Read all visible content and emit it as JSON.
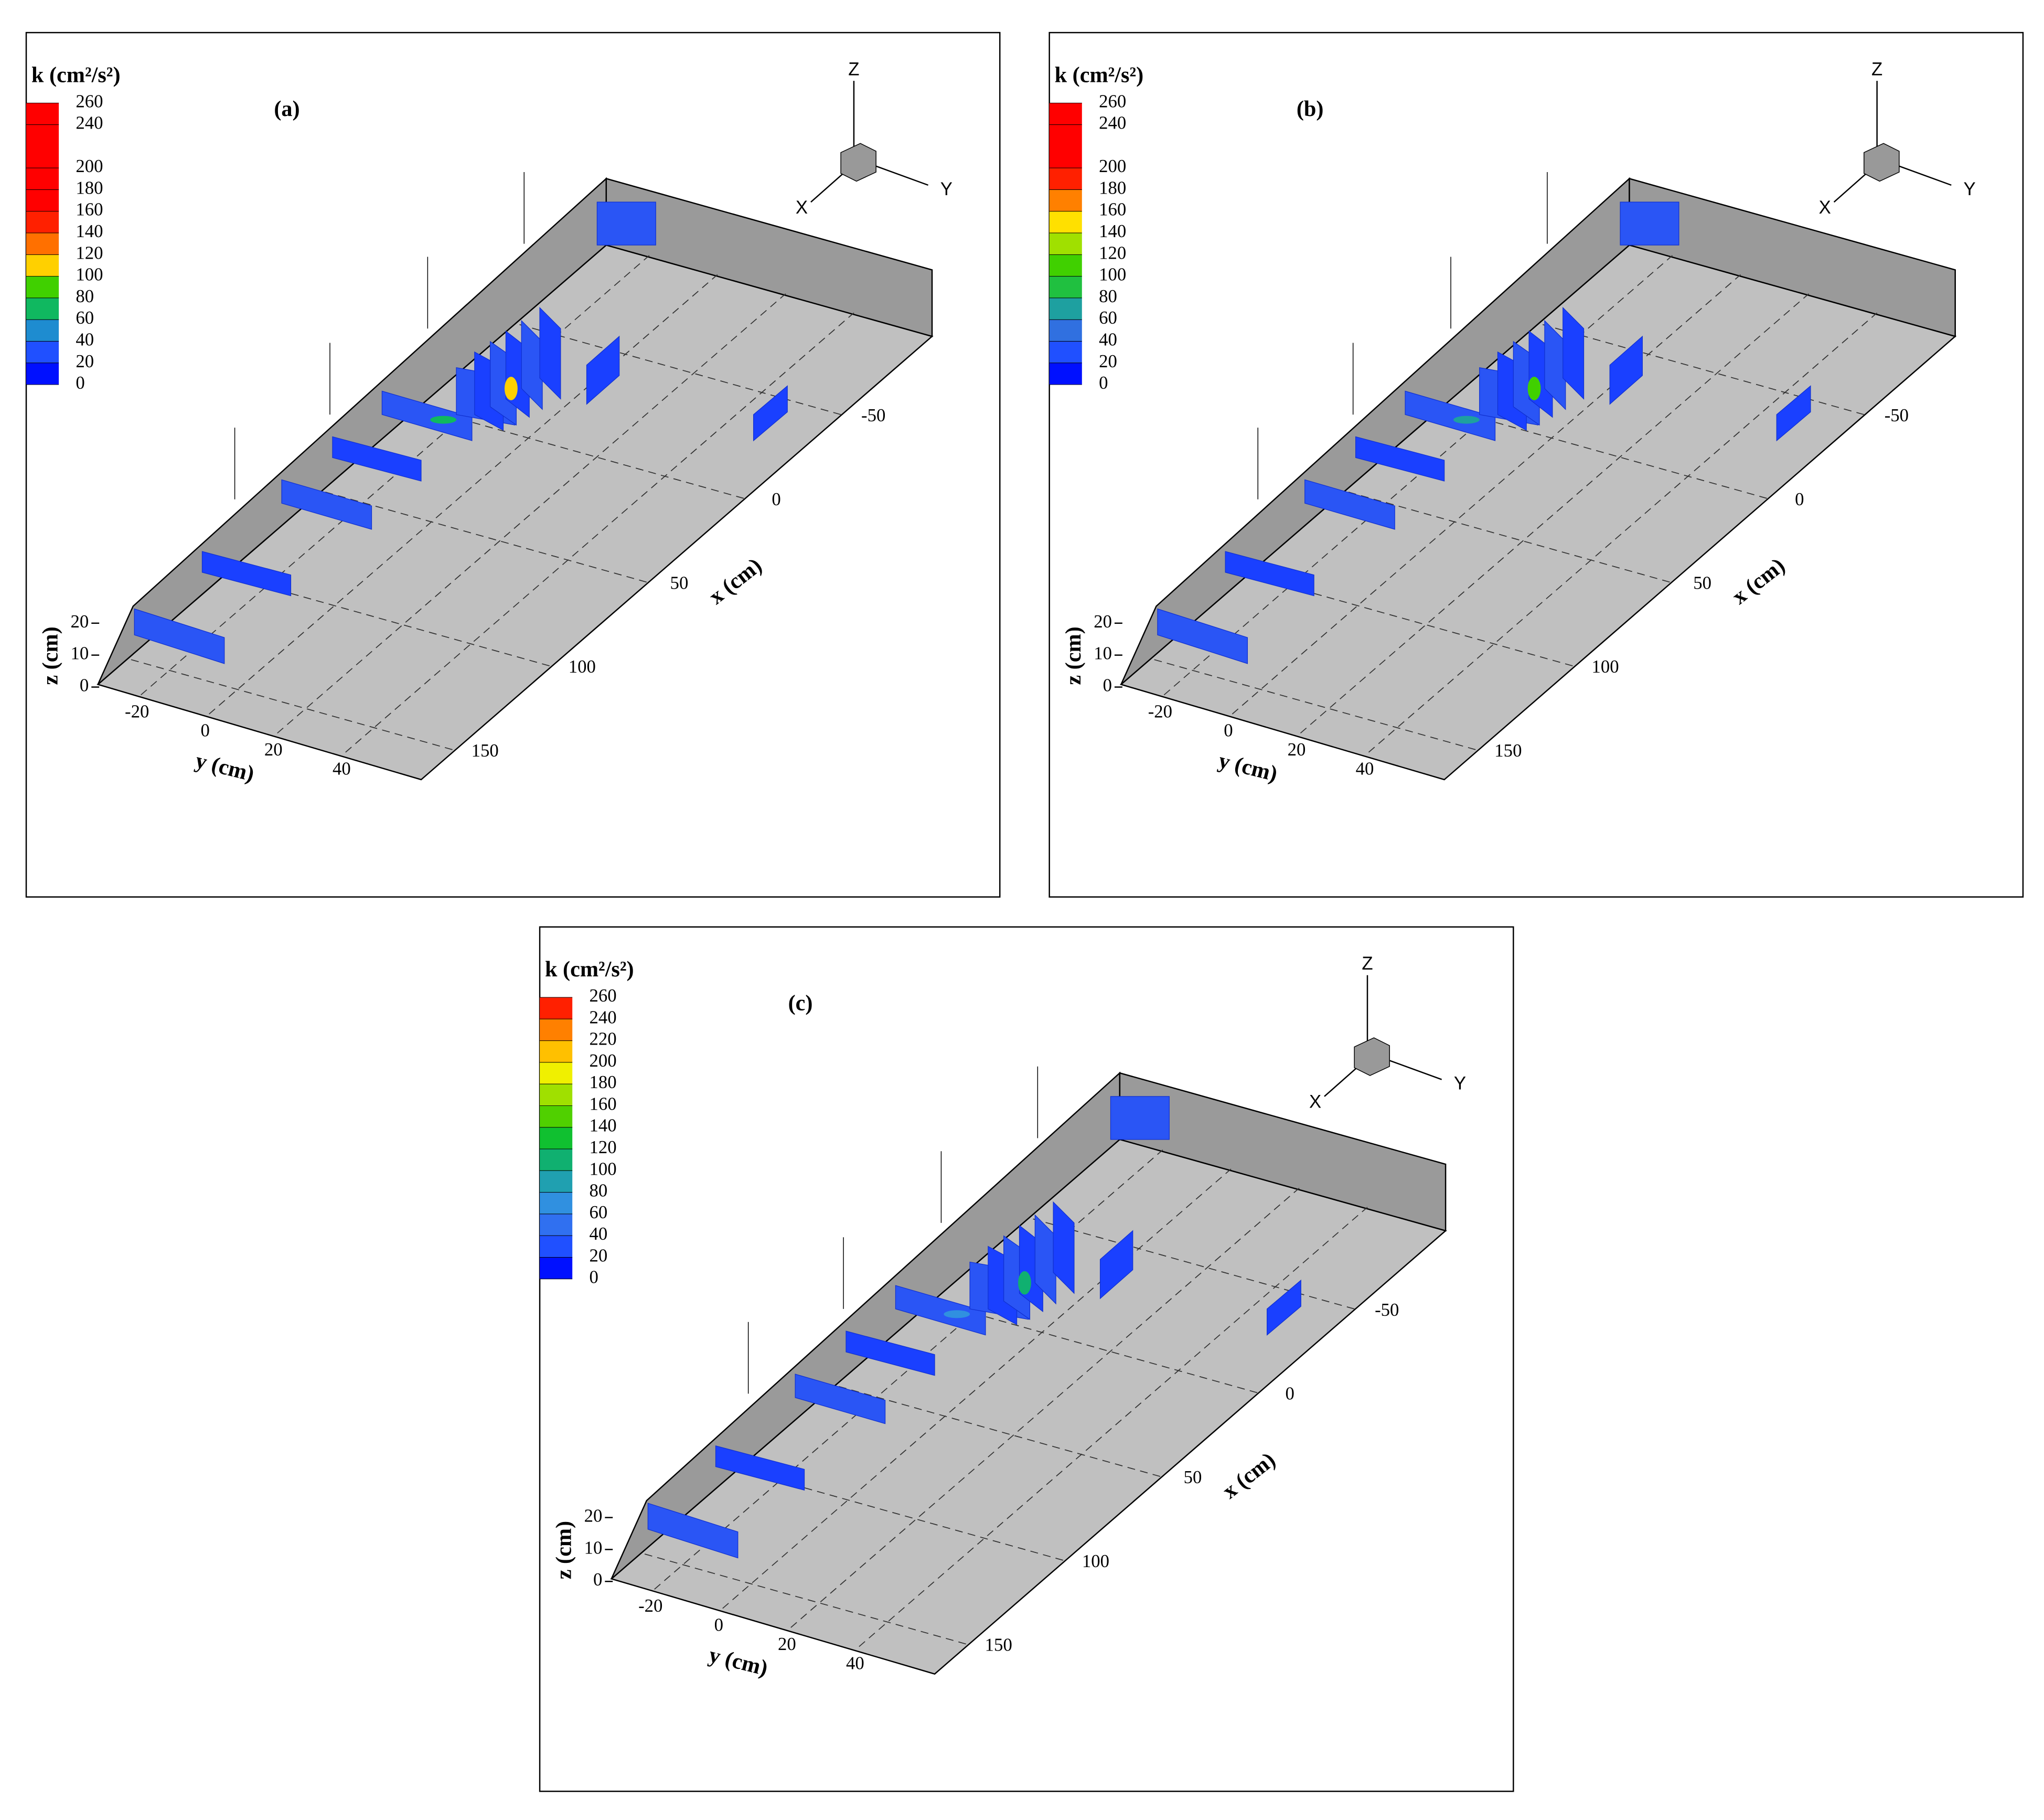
{
  "panels": [
    {
      "label": "(a)",
      "legend_title": "k (cm²/s²)",
      "legend_ticks": [
        0,
        20,
        40,
        60,
        80,
        100,
        120,
        140,
        160,
        180,
        200,
        240,
        260
      ],
      "colorbar_colors": [
        "#0010ff",
        "#2050ff",
        "#1e8cd0",
        "#10b860",
        "#40d000",
        "#ffd000",
        "#ff7000",
        "#ff2000",
        "#ff0000",
        "#ff0000",
        "#ff0000",
        "#ff0000"
      ],
      "x_label": "x (cm)",
      "x_ticks": [
        -50,
        0,
        50,
        100,
        150
      ],
      "y_label": "y (cm)",
      "y_ticks": [
        -20,
        0,
        20,
        40
      ],
      "z_label": "z (cm)",
      "z_ticks": [
        0,
        10,
        20
      ],
      "axes": [
        "X",
        "Y",
        "Z"
      ]
    },
    {
      "label": "(b)",
      "legend_title": "k (cm²/s²)",
      "legend_ticks": [
        0,
        20,
        40,
        60,
        80,
        100,
        120,
        140,
        160,
        180,
        200,
        240,
        260
      ],
      "colorbar_colors": [
        "#0010ff",
        "#2050ff",
        "#3070e0",
        "#1ea0a0",
        "#20c040",
        "#40d000",
        "#a0e000",
        "#ffe000",
        "#ff8000",
        "#ff2000",
        "#ff0000",
        "#ff0000"
      ],
      "x_label": "x (cm)",
      "x_ticks": [
        -50,
        0,
        50,
        100,
        150
      ],
      "y_label": "y (cm)",
      "y_ticks": [
        -20,
        0,
        20,
        40
      ],
      "z_label": "z (cm)",
      "z_ticks": [
        0,
        10,
        20
      ],
      "axes": [
        "X",
        "Y",
        "Z"
      ]
    },
    {
      "label": "(c)",
      "legend_title": "k (cm²/s²)",
      "legend_ticks": [
        0,
        20,
        40,
        60,
        80,
        100,
        120,
        140,
        160,
        180,
        200,
        220,
        240,
        260
      ],
      "colorbar_colors": [
        "#0010ff",
        "#2050ff",
        "#3070f0",
        "#3090e0",
        "#20a0b0",
        "#10b070",
        "#10c030",
        "#50d000",
        "#a0e000",
        "#f0f000",
        "#ffc000",
        "#ff8000",
        "#ff2000"
      ],
      "x_label": "x (cm)",
      "x_ticks": [
        -50,
        0,
        50,
        100,
        150
      ],
      "y_label": "y (cm)",
      "y_ticks": [
        -20,
        0,
        20,
        40
      ],
      "z_label": "z (cm)",
      "z_ticks": [
        0,
        10,
        20
      ],
      "axes": [
        "X",
        "Y",
        "Z"
      ]
    }
  ]
}
